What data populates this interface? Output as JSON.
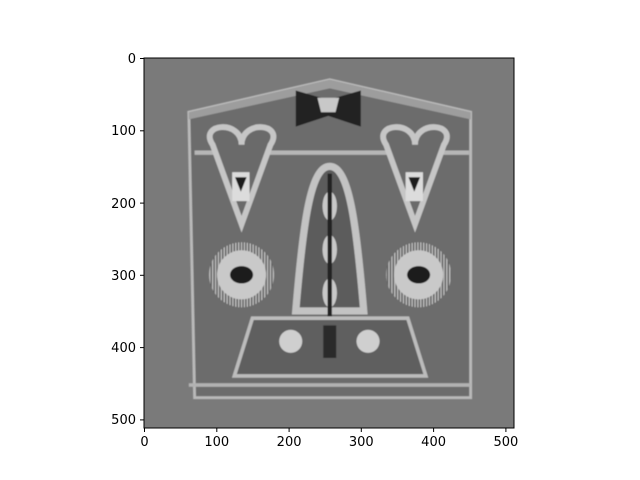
{
  "figure": {
    "x_ticks": [
      "0",
      "100",
      "200",
      "300",
      "400",
      "500"
    ],
    "y_ticks": [
      "0",
      "100",
      "200",
      "300",
      "400",
      "500"
    ],
    "image_description": "grayscale reconstructed slice of a phantom-like object with heart and circular gear features"
  },
  "chart_data": {
    "type": "heatmap",
    "colormap": "gray",
    "xlim": [
      0,
      512
    ],
    "ylim": [
      512,
      0
    ],
    "x_tick_values": [
      0,
      100,
      200,
      300,
      400,
      500
    ],
    "y_tick_values": [
      0,
      100,
      200,
      300,
      400,
      500
    ],
    "title": "",
    "xlabel": "",
    "ylabel": ""
  },
  "colors": {
    "background": "#7b7b7b",
    "object_body": "#6f6f6f",
    "bright_outline": "#c4c4c4",
    "dark_feature": "#1c1c1c"
  }
}
